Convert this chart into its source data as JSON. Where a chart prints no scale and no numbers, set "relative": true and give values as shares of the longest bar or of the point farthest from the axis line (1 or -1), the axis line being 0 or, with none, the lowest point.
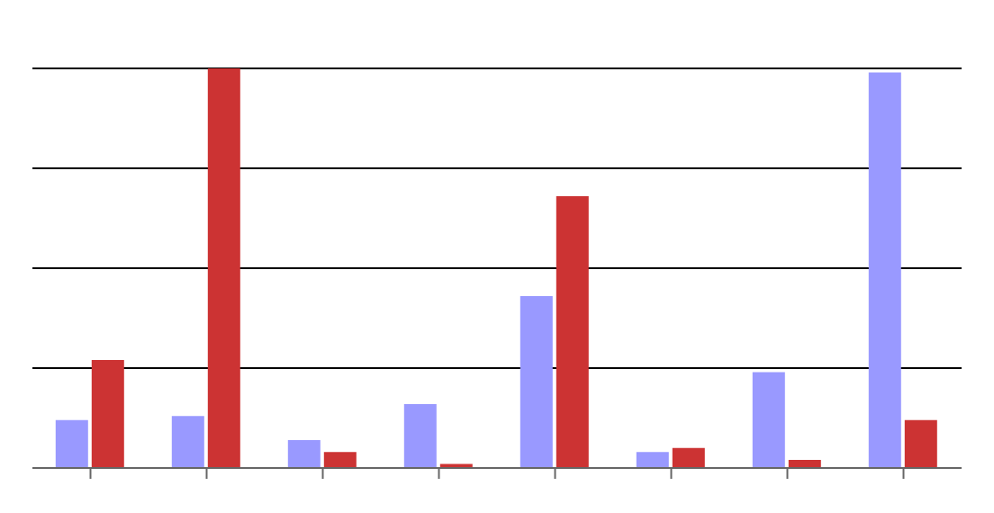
{
  "chart_data": {
    "type": "bar",
    "relative": true,
    "categories": [
      null,
      null,
      null,
      null,
      null,
      null,
      null,
      null
    ],
    "series": [
      {
        "color": "#9999ff",
        "values": [
          0.12,
          0.13,
          0.07,
          0.16,
          0.43,
          0.04,
          0.24,
          0.99
        ]
      },
      {
        "color": "#cc3333",
        "values": [
          0.27,
          1,
          0.04,
          0.01,
          0.68,
          0.05,
          0.02,
          0.12
        ]
      }
    ],
    "grid": "y"
  }
}
